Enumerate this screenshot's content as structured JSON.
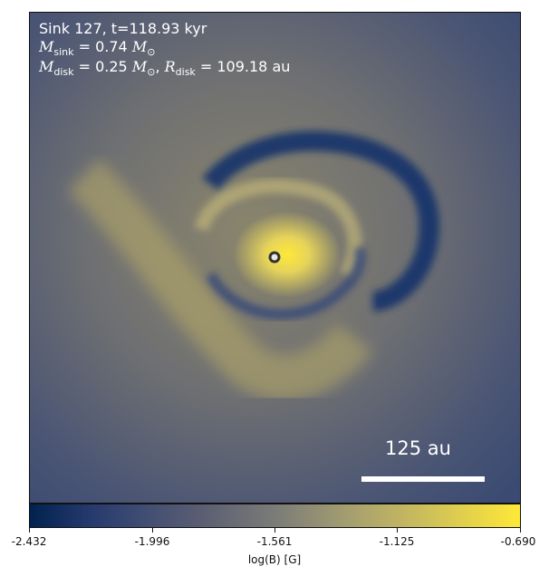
{
  "annotations": {
    "line1": "Sink 127, t=118.93 kyr",
    "m_sink_symbol": "M",
    "m_sink_sub": "sink",
    "m_sink_value": " = 0.74",
    "m_unit": "M",
    "m_unit_sub": "⊙",
    "m_disk_symbol": "M",
    "m_disk_sub": "disk",
    "m_disk_value": " = 0.25",
    "r_disk_symbol": "R",
    "r_disk_sub": "disk",
    "r_disk_value": " = 109.18 au"
  },
  "scale_bar": {
    "label": "125 au"
  },
  "colorbar": {
    "label": "log(B) [G]",
    "ticks": [
      "-2.432",
      "-1.996",
      "-1.561",
      "-1.125",
      "-0.690"
    ],
    "colors": {
      "low": "#00224e",
      "mid": "#7b7b78",
      "high": "#fee838"
    }
  }
}
